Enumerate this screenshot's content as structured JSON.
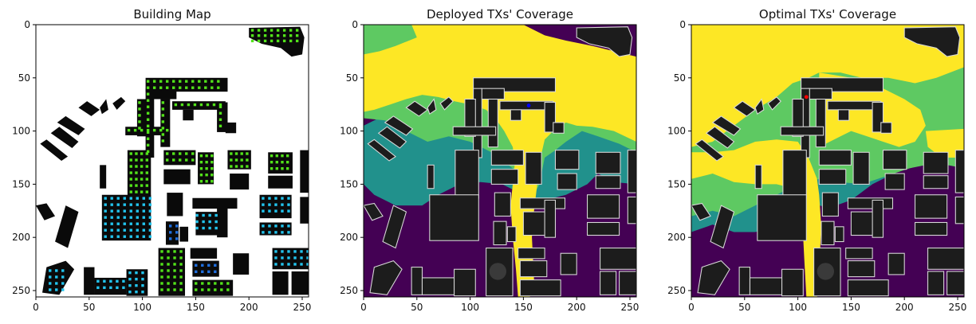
{
  "figure": {
    "panels": [
      {
        "id": "building",
        "title": "Building Map"
      },
      {
        "id": "deployed",
        "title": "Deployed TXs' Coverage"
      },
      {
        "id": "optimal",
        "title": "Optimal TXs' Coverage"
      }
    ]
  },
  "chart_data": [
    {
      "type": "heatmap",
      "title": "Building Map",
      "xlim": [
        0,
        256
      ],
      "ylim": [
        256,
        0
      ],
      "x_ticks": [
        0,
        50,
        100,
        150,
        200,
        250
      ],
      "y_ticks": [
        0,
        50,
        100,
        150,
        200,
        250
      ],
      "colors": {
        "background": "#ffffff",
        "building": "#0a0a0a",
        "marker_green": "#52e21a",
        "marker_cyan": "#22c4ee",
        "marker_blue": "#1f6fe0"
      }
    },
    {
      "type": "heatmap",
      "title": "Deployed TXs' Coverage",
      "xlim": [
        0,
        256
      ],
      "ylim": [
        256,
        0
      ],
      "x_ticks": [
        0,
        50,
        100,
        150,
        200,
        250
      ],
      "y_ticks": [
        0,
        50,
        100,
        150,
        200,
        250
      ],
      "tx_location": [
        155,
        76
      ],
      "tx_color": "#0000ff",
      "colors": [
        "#440154",
        "#21918c",
        "#5ec962",
        "#fde725"
      ]
    },
    {
      "type": "heatmap",
      "title": "Optimal TXs' Coverage",
      "xlim": [
        0,
        256
      ],
      "ylim": [
        256,
        0
      ],
      "x_ticks": [
        0,
        50,
        100,
        150,
        200,
        250
      ],
      "y_ticks": [
        0,
        50,
        100,
        150,
        200,
        250
      ],
      "tx_location": [
        108,
        68
      ],
      "tx_color": "#ff0000",
      "colors": [
        "#440154",
        "#21918c",
        "#5ec962",
        "#fde725"
      ]
    }
  ]
}
